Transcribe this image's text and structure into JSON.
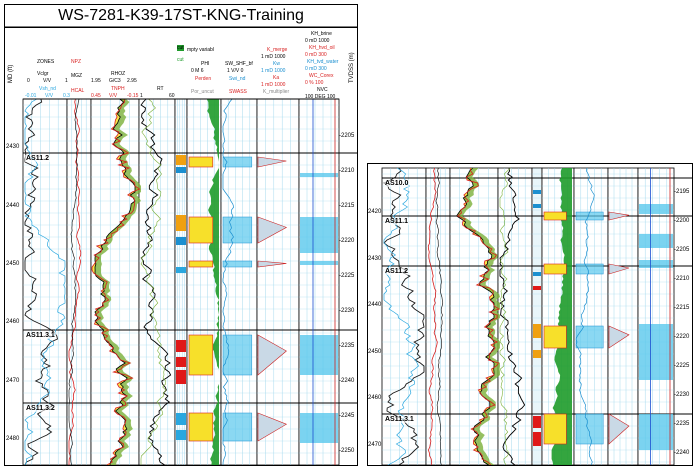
{
  "main": {
    "title": "WS-7281-K39-17ST-KNG-Training",
    "md_axis_label": "MD (ft)",
    "tvd_axis_label": "TVDSS (m)",
    "tracks": {
      "zones": {
        "title": "ZONES",
        "curve": "Vclgr",
        "scale_left": "0",
        "scale_mid": "V/V",
        "scale_right": "1",
        "curve2": "Vsh_nd",
        "scale2_left": "-0.01",
        "scale2_mid": "V/V",
        "scale2_right": "0.3"
      },
      "nph": {
        "curve1": "NPZ",
        "curve2": "MGZ",
        "curve3": "HCAL"
      },
      "rhoz": {
        "curve1": "RHOZ",
        "scale_left": "1.95",
        "scale_mid": "G/C3",
        "scale_right": "2.95",
        "curve2": "TNPH",
        "scale2_left": "0.45",
        "scale2_mid": "V/V",
        "scale2_right": "-0.15"
      },
      "rt": {
        "curve": "RT",
        "scale_left": "1",
        "scale_right": "60"
      },
      "cut": {
        "label": "cut",
        "label2": "cut"
      },
      "phi": {
        "title": "mpty variabl",
        "curve": "PHI",
        "scale": "0  M  6",
        "curve2": "Perden",
        "curve3": "Por_uncut"
      },
      "sw": {
        "curve1": "SW_SHF_bf",
        "scale": "1  V/V  0",
        "curve2": "Swi_nd",
        "curve3": "SWASS"
      },
      "kmerge": {
        "title": "K_merge",
        "scale": "1  mD  1000",
        "curve2": "Kw",
        "scale2": "1  mD  1000",
        "curve3": "Ka",
        "scale3": "1  mD  1000",
        "curve4": "K_multiplier"
      },
      "kh": {
        "title": "KH_brine",
        "scale": "0  mD  1000",
        "curve2": "KH_hvd_oil",
        "scale2": "0  mD  300",
        "curve3": "KH_tvd_water",
        "scale3": "0  mD  300",
        "curve4": "WC_Corex",
        "scale4": "0  %  100",
        "curve5": "NVC",
        "scale5": "100  DEG  100"
      }
    },
    "md_ticks": [
      "2430",
      "2440",
      "2450",
      "2460",
      "2470",
      "2480"
    ],
    "tvd_ticks": [
      "-2205",
      "-2210",
      "-2215",
      "-2220",
      "-2225",
      "-2230",
      "-2235",
      "-2240",
      "-2245",
      "-2250"
    ],
    "zones": [
      "AS11.2",
      "AS11.3.1",
      "AS11.3.2"
    ]
  },
  "side": {
    "md_ticks": [
      "2420",
      "2430",
      "2440",
      "2450",
      "2460",
      "2470"
    ],
    "tvd_ticks": [
      "-2195",
      "-2200",
      "-2205",
      "-2210",
      "-2215",
      "-2220",
      "-2225",
      "-2230",
      "-2235",
      "-2240"
    ],
    "zones": [
      "AS10.0",
      "AS11.1",
      "AS11.2",
      "AS11.3.1"
    ]
  },
  "colors": {
    "gr": "#1a1a1a",
    "vsh": "#2aa7df",
    "dens": "#d81e1e",
    "fill_yellow": "#f7e02a",
    "fill_green": "#7bb03a",
    "cut_green": "#1e9b2a",
    "sw_cyan": "#5ac8ec",
    "k_red": "#cc2222",
    "kh_blue": "#3aa0e0"
  }
}
